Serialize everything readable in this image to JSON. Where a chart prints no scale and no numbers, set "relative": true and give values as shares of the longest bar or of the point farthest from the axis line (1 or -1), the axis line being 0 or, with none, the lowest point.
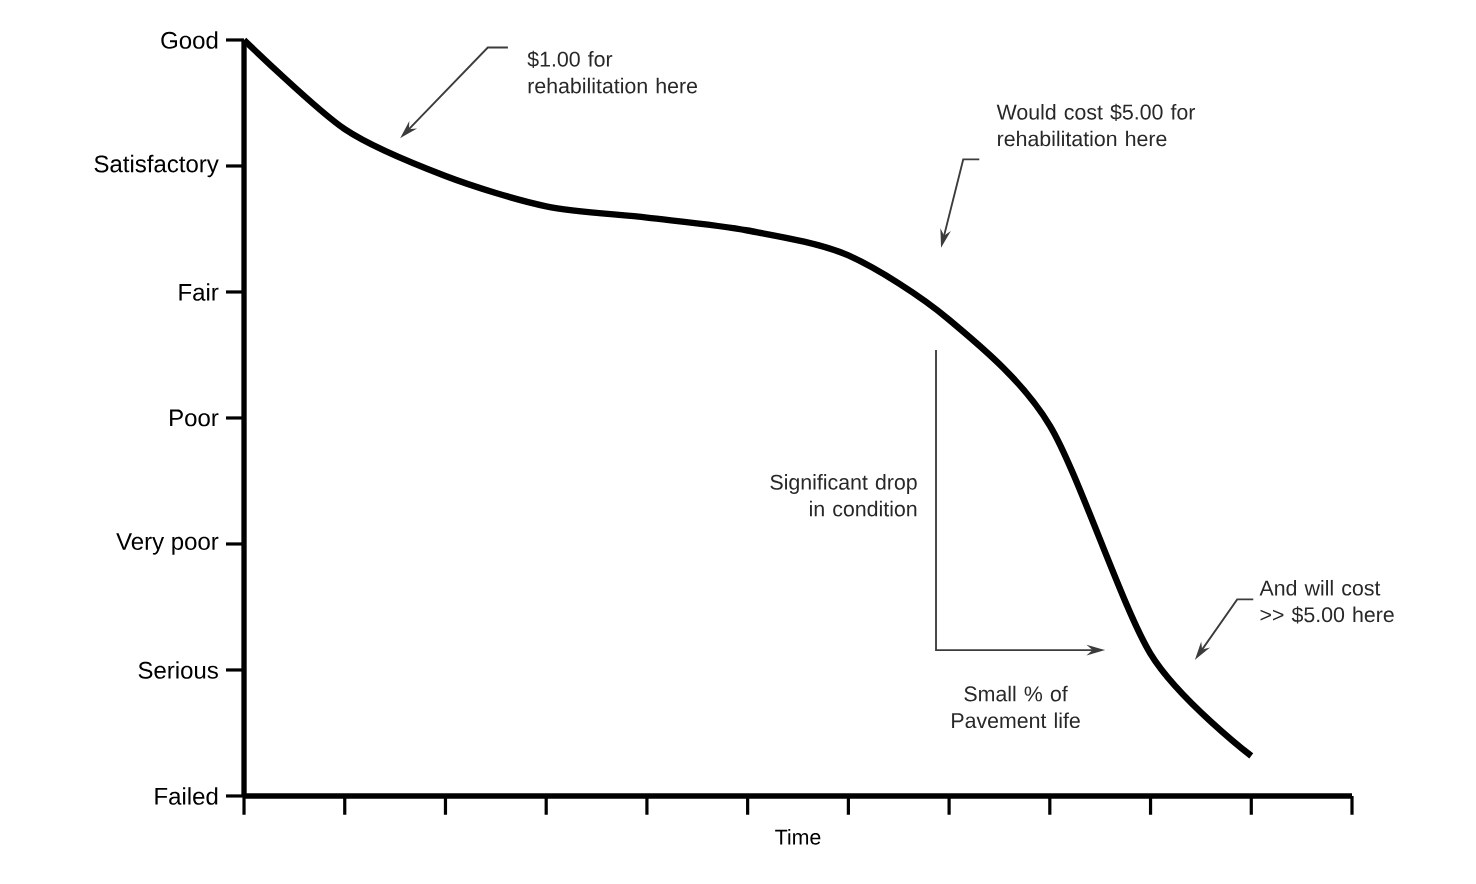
{
  "chart_data": {
    "type": "line",
    "xlabel": "Time",
    "relative": true,
    "categories": [
      null,
      null,
      null,
      null,
      null,
      null,
      null,
      null,
      null,
      null,
      null,
      null
    ],
    "series": [
      {
        "color": "#000000",
        "values": [
          1,
          0.882,
          0.82,
          0.78,
          0.765,
          0.748,
          0.715,
          0.63,
          0.49,
          0.188,
          0.053,
          null
        ]
      }
    ],
    "marker": "none",
    "line_style": "solid",
    "annotations": [
      "Good",
      "Satisfactory",
      "Fair",
      "Poor",
      "Very poor",
      "Serious",
      "Failed",
      "$1.00 for rehabilitation here",
      "Would cost $5.00 for rehabilitation here",
      "Significant drop in condition",
      "Small % of Pavement life",
      "And will cost >> $5.00 here"
    ]
  }
}
